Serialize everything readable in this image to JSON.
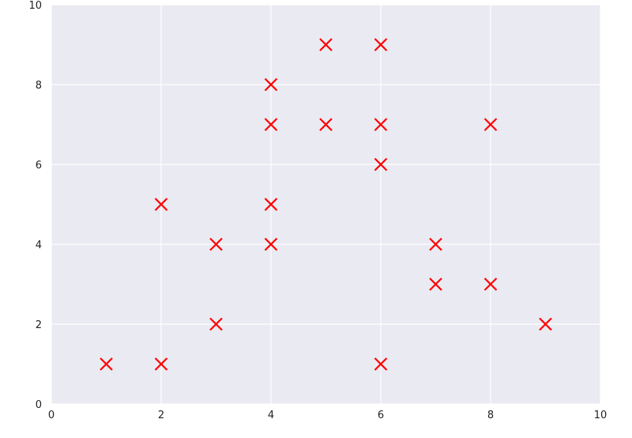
{
  "chart_data": {
    "type": "scatter",
    "title": "",
    "xlabel": "",
    "ylabel": "",
    "xlim": [
      0,
      10
    ],
    "ylim": [
      0,
      10
    ],
    "x_ticks": [
      0,
      2,
      4,
      6,
      8,
      10
    ],
    "y_ticks": [
      0,
      2,
      4,
      6,
      8,
      10
    ],
    "grid": true,
    "marker": "x",
    "colors": {
      "marker": "#ff0000",
      "plot_background": "#eaeaf2",
      "grid": "#ffffff"
    },
    "points": [
      {
        "x": 1,
        "y": 1
      },
      {
        "x": 2,
        "y": 1
      },
      {
        "x": 2,
        "y": 5
      },
      {
        "x": 3,
        "y": 2
      },
      {
        "x": 3,
        "y": 4
      },
      {
        "x": 4,
        "y": 4
      },
      {
        "x": 4,
        "y": 5
      },
      {
        "x": 4,
        "y": 7
      },
      {
        "x": 4,
        "y": 8
      },
      {
        "x": 5,
        "y": 7
      },
      {
        "x": 5,
        "y": 9
      },
      {
        "x": 6,
        "y": 1
      },
      {
        "x": 6,
        "y": 6
      },
      {
        "x": 6,
        "y": 7
      },
      {
        "x": 6,
        "y": 9
      },
      {
        "x": 7,
        "y": 3
      },
      {
        "x": 7,
        "y": 4
      },
      {
        "x": 8,
        "y": 3
      },
      {
        "x": 8,
        "y": 7
      },
      {
        "x": 9,
        "y": 2
      }
    ]
  }
}
